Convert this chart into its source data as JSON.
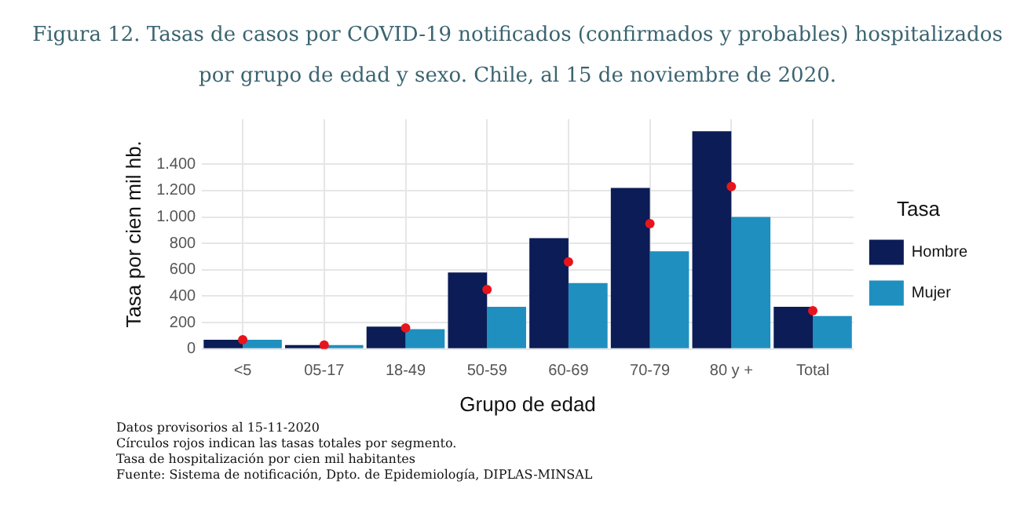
{
  "chart_data": {
    "type": "bar",
    "title": "Figura 12. Tasas de casos por COVID-19 notificados (confirmados y probables) hospitalizados por grupo de edad y sexo. Chile, al 15 de noviembre de 2020.",
    "xlabel": "Grupo de edad",
    "ylabel": "Tasa por cien mil hb.",
    "legend_title": "Tasa",
    "legend": "right",
    "grid": true,
    "categories": [
      "<5",
      "05-17",
      "18-49",
      "50-59",
      "60-69",
      "70-79",
      "80 y +",
      "Total"
    ],
    "series": [
      {
        "name": "Hombre",
        "color": "#0b1c56",
        "values": [
          70,
          30,
          170,
          580,
          840,
          1220,
          1650,
          320
        ]
      },
      {
        "name": "Mujer",
        "color": "#1f8fc0",
        "values": [
          70,
          30,
          150,
          320,
          500,
          740,
          1000,
          250
        ]
      },
      {
        "type": "scatter",
        "marker": "circle",
        "color": "#e8141b",
        "x": [
          "<5",
          "05-17",
          "18-49",
          "50-59",
          "60-69",
          "70-79",
          "80 y +",
          "Total"
        ],
        "values": [
          70,
          30,
          160,
          450,
          660,
          950,
          1230,
          290
        ]
      }
    ],
    "ylim": [
      0,
      1740
    ],
    "yticks": [
      0,
      200,
      400,
      600,
      800,
      {
        "value": 1000,
        "label": "1.000"
      },
      {
        "value": 1200,
        "label": "1.200"
      },
      {
        "value": 1400,
        "label": "1.400"
      }
    ],
    "annotations": [
      "Datos provisorios al 15-11-2020",
      "Círculos rojos indican las tasas totales por segmento.",
      "Tasa de hospitalización por cien mil habitantes",
      "Fuente: Sistema de notificación, Dpto. de Epidemiología, DIPLAS-MINSAL"
    ]
  }
}
